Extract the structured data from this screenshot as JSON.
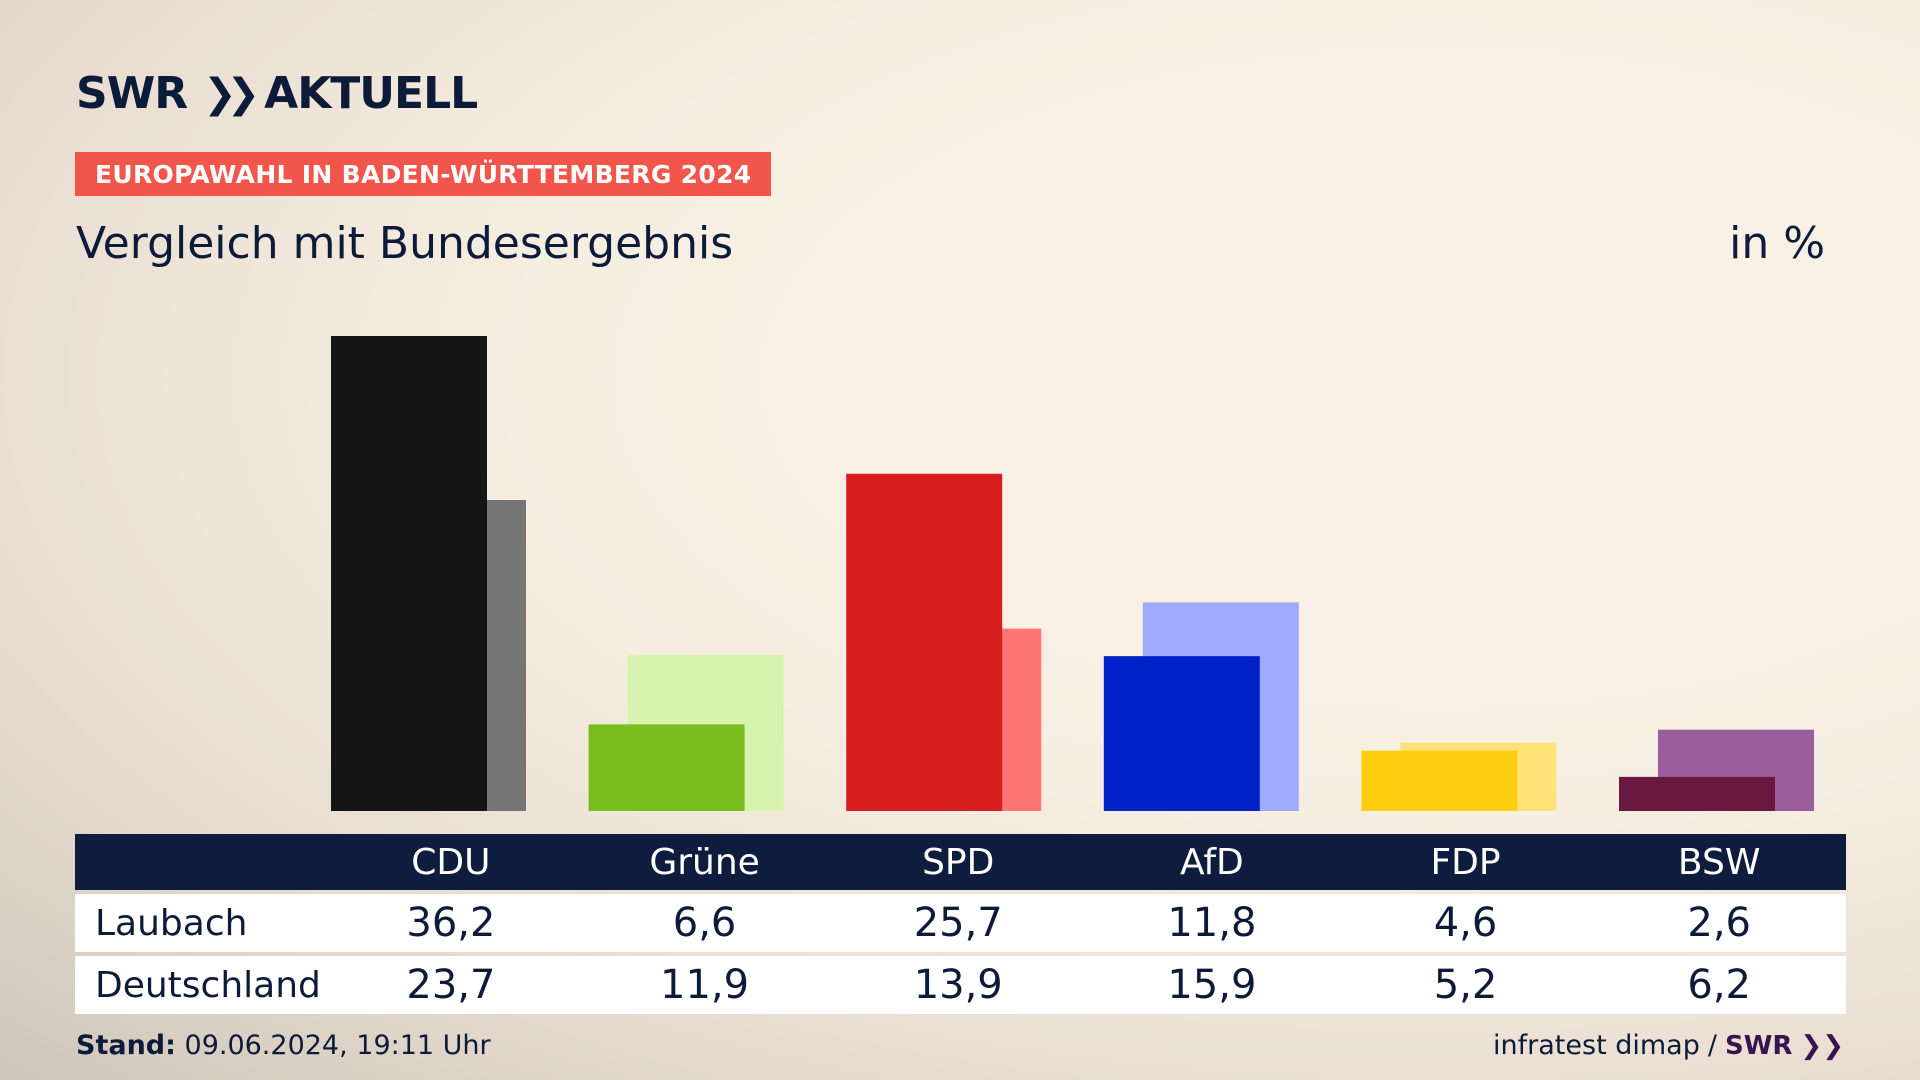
{
  "brand": {
    "name": "SWR",
    "product": "AKTUELL"
  },
  "kicker": "EUROPAWAHL IN BADEN-WÜRTTEMBERG 2024",
  "headline": "Vergleich mit Bundesergebnis",
  "unit": "in %",
  "footer": {
    "stand_label": "Stand:",
    "stand_value": "09.06.2024, 19:11 Uhr",
    "source": "infratest dimap",
    "separator": "/",
    "source_brand": "SWR"
  },
  "table": {
    "rows": [
      {
        "label": "Laubach",
        "values": [
          "36,2",
          "6,6",
          "25,7",
          "11,8",
          "4,6",
          "2,6"
        ]
      },
      {
        "label": "Deutschland",
        "values": [
          "23,7",
          "11,9",
          "13,9",
          "15,9",
          "5,2",
          "6,2"
        ]
      }
    ]
  },
  "chart_data": {
    "type": "bar",
    "categories": [
      "CDU",
      "Grüne",
      "SPD",
      "AfD",
      "FDP",
      "BSW"
    ],
    "series": [
      {
        "name": "Laubach",
        "values": [
          36.2,
          6.6,
          25.7,
          11.8,
          4.6,
          2.6
        ],
        "colors": [
          "#151515",
          "#79bd1c",
          "#d81f1f",
          "#0020c8",
          "#ffcd0f",
          "#6a1840"
        ]
      },
      {
        "name": "Deutschland",
        "values": [
          23.7,
          11.9,
          13.9,
          15.9,
          5.2,
          6.2
        ],
        "colors": [
          "#757575",
          "#d6f4ad",
          "#ff7474",
          "#9eaaff",
          "#ffe27a",
          "#9b5d9b"
        ]
      }
    ],
    "ylim": [
      0,
      36.2
    ],
    "grid": false,
    "legend": "table-below"
  }
}
